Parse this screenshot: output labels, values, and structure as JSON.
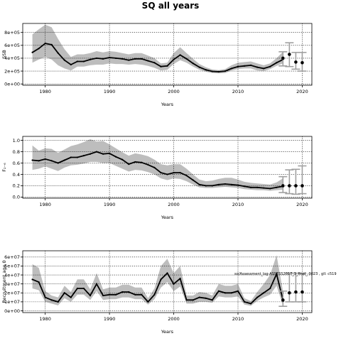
{
  "title": "SQ all years",
  "colors": {
    "line": "#000000",
    "band": "#bdbdbd",
    "errorbar": "#a0a0a0",
    "grid": "#000000"
  },
  "chart_data": [
    {
      "type": "line",
      "ylabel": "SSB",
      "xlabel": "Years",
      "xlim": [
        1976.5,
        2021.5
      ],
      "ylim": [
        -20000,
        940000
      ],
      "xticks": [
        1980,
        1990,
        2000,
        2010,
        2020
      ],
      "xtick_labels": [
        "1980",
        "1990",
        "2000",
        "2010",
        "2020"
      ],
      "yticks": [
        0,
        200000,
        400000,
        600000,
        800000
      ],
      "ytick_labels": [
        "0e+00",
        "2e+05",
        "4e+05",
        "6e+05",
        "8e+05"
      ],
      "grid": true,
      "x": [
        1978,
        1979,
        1980,
        1981,
        1982,
        1983,
        1984,
        1985,
        1986,
        1987,
        1988,
        1989,
        1990,
        1991,
        1992,
        1993,
        1994,
        1995,
        1996,
        1997,
        1998,
        1999,
        2000,
        2001,
        2002,
        2003,
        2004,
        2005,
        2006,
        2007,
        2008,
        2009,
        2010,
        2011,
        2012,
        2013,
        2014,
        2015,
        2016,
        2017
      ],
      "series": [
        {
          "role": "median",
          "values": [
            490000,
            550000,
            630000,
            610000,
            480000,
            370000,
            300000,
            350000,
            350000,
            380000,
            400000,
            390000,
            410000,
            400000,
            390000,
            370000,
            390000,
            390000,
            360000,
            330000,
            270000,
            280000,
            380000,
            450000,
            390000,
            320000,
            260000,
            220000,
            195000,
            190000,
            200000,
            240000,
            270000,
            280000,
            290000,
            260000,
            240000,
            270000,
            330000,
            380000
          ]
        },
        {
          "role": "lower",
          "values": [
            330000,
            380000,
            420000,
            380000,
            290000,
            240000,
            210000,
            270000,
            270000,
            290000,
            300000,
            300000,
            320000,
            310000,
            310000,
            300000,
            310000,
            300000,
            280000,
            250000,
            210000,
            220000,
            310000,
            370000,
            330000,
            270000,
            220000,
            190000,
            170000,
            165000,
            170000,
            210000,
            230000,
            240000,
            240000,
            210000,
            200000,
            230000,
            280000,
            320000
          ]
        },
        {
          "role": "upper",
          "values": [
            770000,
            850000,
            920000,
            880000,
            700000,
            540000,
            420000,
            460000,
            460000,
            480000,
            510000,
            490000,
            510000,
            500000,
            480000,
            460000,
            480000,
            480000,
            440000,
            400000,
            320000,
            330000,
            480000,
            570000,
            480000,
            390000,
            310000,
            260000,
            225000,
            215000,
            230000,
            290000,
            330000,
            340000,
            350000,
            320000,
            290000,
            320000,
            400000,
            500000
          ]
        }
      ],
      "projection": [
        {
          "year": 2017,
          "value": 400000,
          "low": 280000,
          "high": 500000
        },
        {
          "year": 2018,
          "value": 460000,
          "low": 270000,
          "high": 640000
        },
        {
          "year": 2019,
          "value": 340000,
          "low": 230000,
          "high": 490000
        },
        {
          "year": 2020,
          "value": 330000,
          "low": 200000,
          "high": 490000
        }
      ]
    },
    {
      "type": "line",
      "ylabel": "F₂₋₆",
      "xlabel": "Years",
      "xlim": [
        1976.5,
        2021.5
      ],
      "ylim": [
        -0.02,
        1.07
      ],
      "xticks": [
        1980,
        1990,
        2000,
        2010,
        2020
      ],
      "xtick_labels": [
        "1980",
        "1990",
        "2000",
        "2010",
        "2020"
      ],
      "yticks": [
        0,
        0.2,
        0.4,
        0.6,
        0.8,
        1.0
      ],
      "ytick_labels": [
        "0.0",
        "0.2",
        "0.4",
        "0.6",
        "0.8",
        "1.0"
      ],
      "grid": true,
      "x": [
        1978,
        1979,
        1980,
        1981,
        1982,
        1983,
        1984,
        1985,
        1986,
        1987,
        1988,
        1989,
        1990,
        1991,
        1992,
        1993,
        1994,
        1995,
        1996,
        1997,
        1998,
        1999,
        2000,
        2001,
        2002,
        2003,
        2004,
        2005,
        2006,
        2007,
        2008,
        2009,
        2010,
        2011,
        2012,
        2013,
        2014,
        2015,
        2016,
        2017
      ],
      "series": [
        {
          "role": "median",
          "values": [
            0.65,
            0.64,
            0.67,
            0.64,
            0.6,
            0.65,
            0.7,
            0.7,
            0.73,
            0.76,
            0.8,
            0.76,
            0.77,
            0.71,
            0.66,
            0.58,
            0.62,
            0.61,
            0.57,
            0.52,
            0.43,
            0.4,
            0.43,
            0.43,
            0.38,
            0.3,
            0.22,
            0.2,
            0.2,
            0.22,
            0.23,
            0.22,
            0.21,
            0.19,
            0.17,
            0.17,
            0.16,
            0.15,
            0.17,
            0.19
          ]
        },
        {
          "role": "lower",
          "values": [
            0.48,
            0.5,
            0.54,
            0.5,
            0.46,
            0.52,
            0.56,
            0.57,
            0.59,
            0.62,
            0.62,
            0.6,
            0.6,
            0.55,
            0.5,
            0.45,
            0.48,
            0.47,
            0.44,
            0.4,
            0.33,
            0.3,
            0.33,
            0.32,
            0.28,
            0.22,
            0.17,
            0.16,
            0.16,
            0.17,
            0.18,
            0.17,
            0.16,
            0.14,
            0.13,
            0.12,
            0.12,
            0.11,
            0.12,
            0.13
          ]
        },
        {
          "role": "upper",
          "values": [
            0.91,
            0.82,
            0.86,
            0.85,
            0.78,
            0.84,
            0.9,
            0.93,
            0.97,
            1.02,
            0.98,
            0.99,
            0.93,
            0.86,
            0.79,
            0.73,
            0.77,
            0.75,
            0.72,
            0.66,
            0.58,
            0.56,
            0.58,
            0.58,
            0.5,
            0.4,
            0.31,
            0.28,
            0.29,
            0.32,
            0.34,
            0.34,
            0.31,
            0.27,
            0.25,
            0.24,
            0.23,
            0.22,
            0.26,
            0.33
          ]
        }
      ],
      "projection": [
        {
          "year": 2017,
          "value": 0.2,
          "low": 0.08,
          "high": 0.36
        },
        {
          "year": 2018,
          "value": 0.2,
          "low": 0.06,
          "high": 0.48
        },
        {
          "year": 2019,
          "value": 0.2,
          "low": 0.05,
          "high": 0.49
        },
        {
          "year": 2020,
          "value": 0.2,
          "low": 0.06,
          "high": 0.55
        }
      ]
    },
    {
      "type": "line",
      "ylabel": "Recruitment age 0",
      "xlabel": "Years",
      "xlim": [
        1976.5,
        2021.5
      ],
      "ylim": [
        -2000000,
        67000000
      ],
      "xticks": [
        1980,
        1990,
        2000,
        2010,
        2020
      ],
      "xtick_labels": [
        "1980",
        "1990",
        "2000",
        "2010",
        "2020"
      ],
      "yticks": [
        0,
        10000000,
        20000000,
        30000000,
        40000000,
        50000000,
        60000000
      ],
      "ytick_labels": [
        "0e+00",
        "1e+07",
        "2e+07",
        "3e+07",
        "4e+07",
        "5e+07",
        "6e+07"
      ],
      "grid": true,
      "annotation": "sq/Assessment_log-ASSESS2017_3_final_-9023 , gll: c519",
      "x": [
        1978,
        1979,
        1980,
        1981,
        1982,
        1983,
        1984,
        1985,
        1986,
        1987,
        1988,
        1989,
        1990,
        1991,
        1992,
        1993,
        1994,
        1995,
        1996,
        1997,
        1998,
        1999,
        2000,
        2001,
        2002,
        2003,
        2004,
        2005,
        2006,
        2007,
        2008,
        2009,
        2010,
        2011,
        2012,
        2013,
        2014,
        2015,
        2016,
        2017
      ],
      "series": [
        {
          "role": "median",
          "values": [
            35000000,
            32000000,
            15000000,
            12000000,
            10000000,
            20000000,
            15000000,
            25000000,
            25000000,
            17000000,
            30000000,
            17000000,
            18000000,
            18000000,
            21000000,
            21000000,
            18000000,
            18000000,
            10000000,
            18000000,
            35000000,
            42000000,
            30000000,
            36000000,
            12000000,
            12000000,
            15000000,
            14000000,
            12000000,
            22000000,
            20000000,
            20000000,
            22000000,
            10000000,
            8000000,
            15000000,
            20000000,
            25000000,
            41000000,
            12000000
          ]
        },
        {
          "role": "lower",
          "values": [
            25000000,
            23000000,
            10000000,
            8000000,
            6000000,
            14000000,
            10000000,
            18000000,
            18000000,
            12000000,
            22000000,
            12000000,
            13000000,
            13000000,
            15000000,
            15000000,
            13000000,
            13000000,
            7000000,
            13000000,
            26000000,
            32000000,
            22000000,
            27000000,
            8000000,
            8000000,
            10000000,
            10000000,
            9000000,
            16000000,
            15000000,
            15000000,
            16000000,
            7000000,
            5500000,
            11000000,
            15000000,
            18000000,
            28000000,
            6000000
          ]
        },
        {
          "role": "upper",
          "values": [
            52000000,
            48000000,
            22000000,
            17000000,
            15000000,
            28000000,
            21000000,
            35000000,
            35000000,
            24000000,
            42000000,
            24000000,
            26000000,
            26000000,
            29000000,
            29000000,
            26000000,
            26000000,
            14000000,
            25000000,
            50000000,
            58000000,
            42000000,
            50000000,
            17000000,
            17000000,
            21000000,
            20000000,
            17000000,
            30000000,
            28000000,
            28000000,
            30000000,
            14000000,
            11000000,
            21000000,
            30000000,
            40000000,
            62000000,
            22000000
          ]
        }
      ],
      "projection": [
        {
          "year": 2017,
          "value": 12000000,
          "low": 5000000,
          "high": 22000000
        },
        {
          "year": 2018,
          "value": 20000000,
          "low": 10000000,
          "high": 42000000
        },
        {
          "year": 2019,
          "value": 21000000,
          "low": 10000000,
          "high": 42000000
        },
        {
          "year": 2020,
          "value": 21000000,
          "low": 10000000,
          "high": 42000000
        }
      ]
    }
  ]
}
